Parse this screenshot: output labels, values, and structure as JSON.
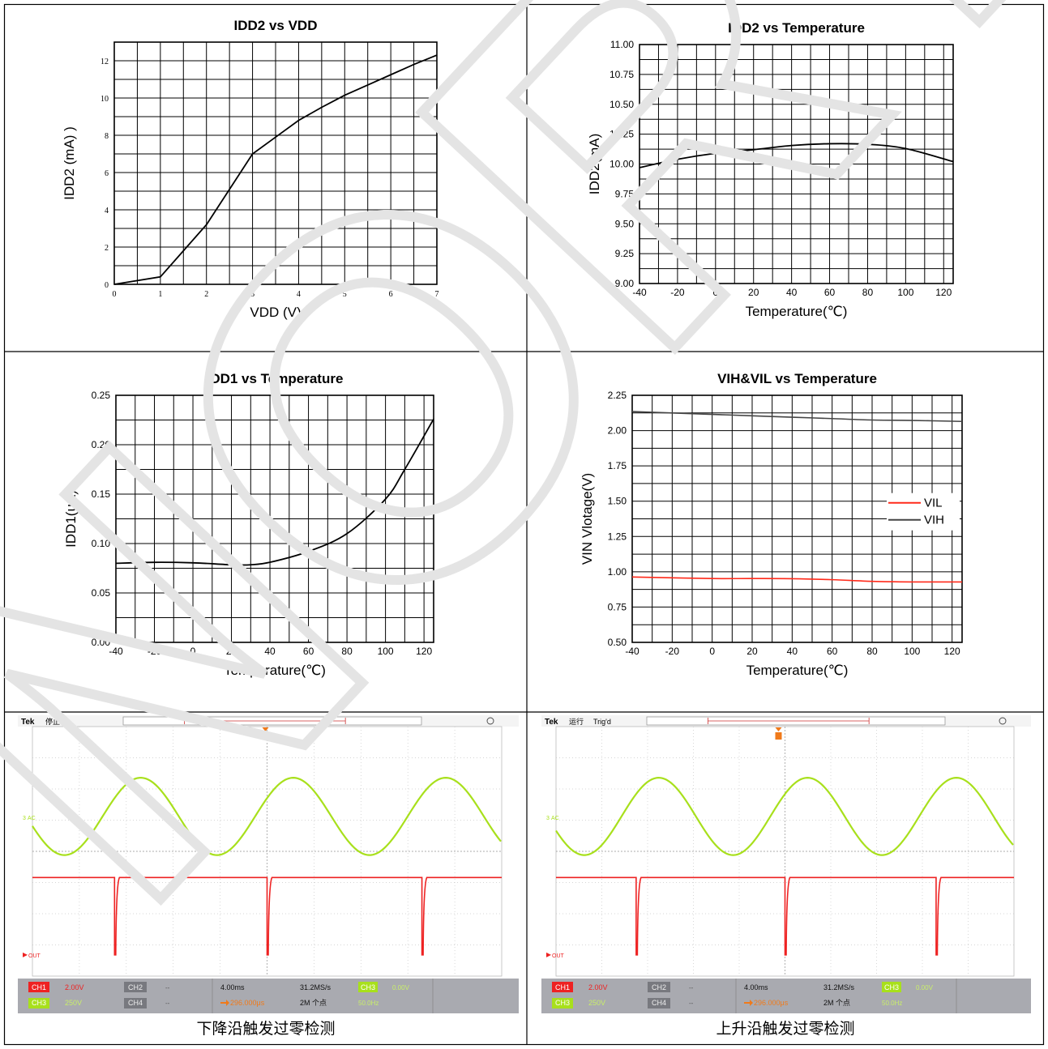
{
  "charts": [
    {
      "id": "idd2-vdd",
      "chart_data": {
        "type": "line",
        "title": "IDD2 vs VDD",
        "xlabel": "VDD (V)",
        "ylabel": "IDD2 (mA) )",
        "xlim": [
          0,
          7
        ],
        "ylim": [
          0,
          13
        ],
        "xticks": [
          "0",
          "1",
          "2",
          "3",
          "4",
          "5",
          "6",
          "7"
        ],
        "yticks": [
          "0",
          "2",
          "4",
          "6",
          "8",
          "10",
          "12"
        ],
        "grid": true,
        "series": [
          {
            "color": "#000000",
            "x": [
              0,
              1,
              1.5,
              2,
              2.5,
              3,
              3.5,
              4,
              4.5,
              5,
              5.5,
              6,
              6.5,
              7
            ],
            "y": [
              0,
              0.4,
              1.8,
              3.2,
              5.1,
              7.0,
              7.9,
              8.8,
              9.5,
              10.15,
              10.7,
              11.25,
              11.8,
              12.3
            ]
          }
        ]
      }
    },
    {
      "id": "idd2-temp",
      "chart_data": {
        "type": "line",
        "title": "IDD2 vs Temperature",
        "xlabel": "Temperature(℃)",
        "ylabel": "IDD2(mA)",
        "xlim": [
          -40,
          125
        ],
        "ylim": [
          9.0,
          11.0
        ],
        "xticks": [
          "-40",
          "-20",
          "0",
          "20",
          "40",
          "60",
          "80",
          "100",
          "120"
        ],
        "yticks": [
          "9.00",
          "9.25",
          "9.50",
          "9.75",
          "10.00",
          "10.25",
          "10.50",
          "10.75",
          "11.00"
        ],
        "grid": true,
        "series": [
          {
            "color": "#000000",
            "x": [
              -40,
              -20,
              0,
              20,
              40,
              60,
              80,
              100,
              125
            ],
            "y": [
              9.97,
              10.04,
              10.09,
              10.12,
              10.155,
              10.17,
              10.165,
              10.13,
              10.02
            ]
          }
        ]
      }
    },
    {
      "id": "idd1-temp",
      "chart_data": {
        "type": "line",
        "title": "IDD1 vs Temperature",
        "xlabel": "Temperature(℃)",
        "ylabel": "IDD1(uA)",
        "xlim": [
          -40,
          125
        ],
        "ylim": [
          0.0,
          0.25
        ],
        "xticks": [
          "-40",
          "-20",
          "0",
          "20",
          "40",
          "60",
          "80",
          "100",
          "120"
        ],
        "yticks": [
          "0.00",
          "0.05",
          "0.10",
          "0.15",
          "0.20",
          "0.25"
        ],
        "grid": true,
        "series": [
          {
            "color": "#000000",
            "x": [
              -40,
              -20,
              0,
              20,
              30,
              40,
              60,
              80,
              100,
              110,
              125
            ],
            "y": [
              0.08,
              0.081,
              0.0805,
              0.0785,
              0.0785,
              0.081,
              0.092,
              0.11,
              0.145,
              0.175,
              0.226
            ]
          }
        ]
      }
    },
    {
      "id": "vih-vil-temp",
      "chart_data": {
        "type": "line",
        "title": "VIH&VIL vs Temperature",
        "xlabel": "Temperature(℃)",
        "ylabel": "VIN Vlotage(V)",
        "xlim": [
          -40,
          125
        ],
        "ylim": [
          0.5,
          2.25
        ],
        "xticks": [
          "-40",
          "-20",
          "0",
          "20",
          "40",
          "60",
          "80",
          "100",
          "120"
        ],
        "yticks": [
          "0.50",
          "0.75",
          "1.00",
          "1.25",
          "1.50",
          "1.75",
          "2.00",
          "2.25"
        ],
        "grid": true,
        "legend_position": "right",
        "series": [
          {
            "name": "VIL",
            "color": "#ff2a1a",
            "x": [
              -40,
              -20,
              0,
              20,
              40,
              60,
              80,
              100,
              125
            ],
            "y": [
              0.963,
              0.957,
              0.952,
              0.952,
              0.951,
              0.944,
              0.932,
              0.928,
              0.928
            ]
          },
          {
            "name": "VIH",
            "color": "#444444",
            "x": [
              -40,
              -20,
              0,
              20,
              40,
              60,
              80,
              100,
              125
            ],
            "y": [
              2.135,
              2.125,
              2.115,
              2.105,
              2.095,
              2.085,
              2.075,
              2.072,
              2.065
            ]
          }
        ]
      }
    }
  ],
  "scopes": [
    {
      "id": "scope-falling",
      "caption": "下降沿触发过零检测",
      "status": "停止",
      "trig": "",
      "ch_ac_label": "AC",
      "ch_out_label": "OUT",
      "bar": {
        "ch1": "CH1",
        "ch1_scale": "2.00V",
        "ch2": "CH2",
        "ch2_val": "--",
        "ch3": "CH3",
        "ch3_scale": "250V",
        "ch4": "CH4",
        "ch4_val": "--",
        "timebase": "4.00ms",
        "trig_pos": "296.000μs",
        "sample_rate": "31.2MS/s",
        "record": "2M 个点",
        "trig_ch": "CH3",
        "trig_level": "0.00V",
        "freq": "50.0Hz"
      },
      "spike_fracs": [
        0.175,
        0.5,
        0.83
      ]
    },
    {
      "id": "scope-rising",
      "caption": "上升沿触发过零检测",
      "status": "运行",
      "trig": "Trig'd",
      "ch_ac_label": "AC",
      "ch_out_label": "OUT",
      "bar": {
        "ch1": "CH1",
        "ch1_scale": "2.00V",
        "ch2": "CH2",
        "ch2_val": "--",
        "ch3": "CH3",
        "ch3_scale": "250V",
        "ch4": "CH4",
        "ch4_val": "--",
        "timebase": "4.00ms",
        "trig_pos": "296.000μs",
        "sample_rate": "31.2MS/s",
        "record": "2M 个点",
        "trig_ch": "CH3",
        "trig_level": "0.00V",
        "freq": "50.0Hz"
      },
      "spike_fracs": [
        0.175,
        0.5,
        0.83
      ]
    }
  ],
  "brand": "Tek",
  "watermark": "NORTH"
}
